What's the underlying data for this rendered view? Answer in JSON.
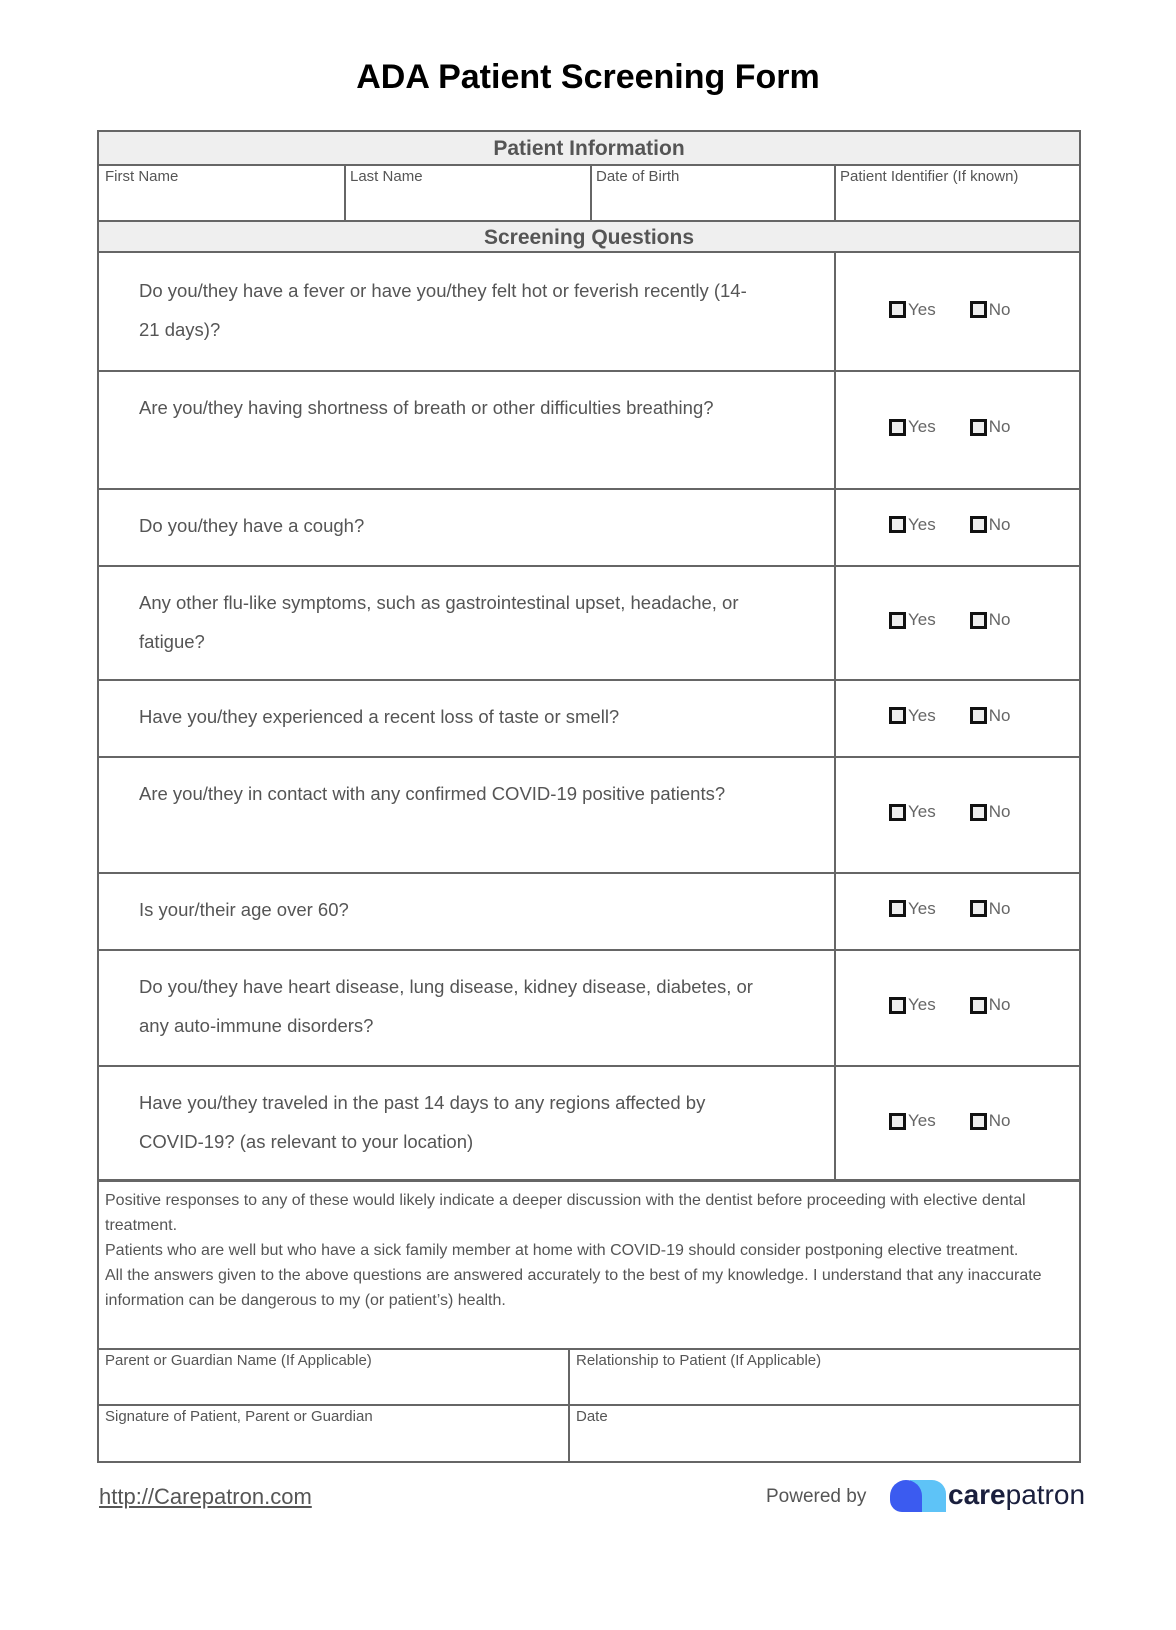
{
  "title": "ADA Patient Screening Form",
  "patient_info": {
    "header": "Patient Information",
    "fields": [
      "First Name",
      "Last Name",
      "Date of Birth",
      "Patient Identifier (If known)"
    ]
  },
  "screening": {
    "header": "Screening Questions",
    "yes_label": "Yes",
    "no_label": "No",
    "questions": [
      "Do you/they have a fever or have you/they felt hot or feverish recently (14-21 days)?",
      "Are you/they having shortness of breath or other difficulties breathing?",
      "Do you/they have a cough?",
      "Any other flu-like symptoms, such as gastrointestinal upset, headache, or fatigue?",
      "Have you/they experienced a recent loss of taste or smell?",
      "Are you/they in contact with any confirmed COVID-19 positive patients?",
      "Is your/their age over 60?",
      "Do you/they have heart disease, lung disease, kidney disease, diabetes, or any auto-immune disorders?",
      "Have you/they traveled in the past 14 days to any regions affected by COVID-19? (as relevant to your location)"
    ]
  },
  "notes": [
    "Positive responses to any of these would likely indicate a deeper discussion with the dentist before proceeding with elective dental treatment.",
    "Patients who are well but who have a sick family member at home with COVID-19 should consider postponing elective treatment.",
    "All the answers given to the above questions are answered accurately to the best of my knowledge. I understand that any inaccurate information can be dangerous to my (or patient’s) health."
  ],
  "signoff": {
    "guardian_name": "Parent or Guardian Name (If Applicable)",
    "relationship": "Relationship to Patient (If Applicable)",
    "signature": "Signature of Patient, Parent or Guardian",
    "date": "Date"
  },
  "footer": {
    "link": "http://Carepatron.com",
    "powered_by": "Powered by",
    "brand_bold": "care",
    "brand_rest": "patron"
  },
  "colors": {
    "header_bg": "#efefef",
    "border": "#666666",
    "logo_blue": "#3b5bf0",
    "logo_light": "#5ec3f7"
  }
}
